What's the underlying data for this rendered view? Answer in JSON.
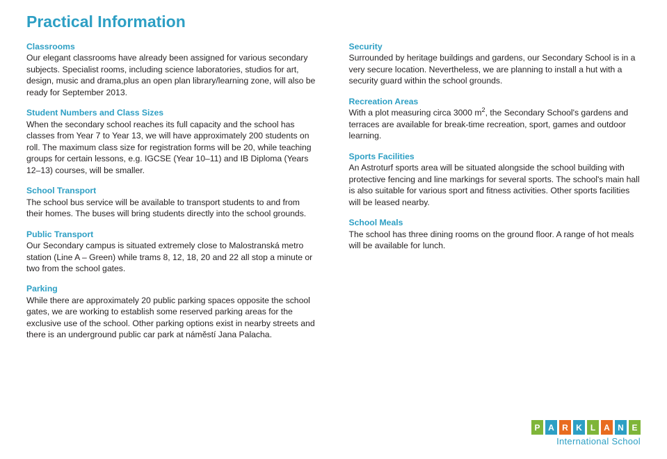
{
  "title": "Practical Information",
  "left": [
    {
      "heading": "Classrooms",
      "body": "Our elegant classrooms have already been assigned for various secondary subjects. Specialist rooms, including science laboratories, studios for art, design, music and drama,plus an open plan library/learning zone, will also be ready for September 2013."
    },
    {
      "heading": "Student Numbers and Class Sizes",
      "body": "When the secondary school reaches its full capacity and the school has classes from Year 7 to Year 13, we will have approximately 200 students on roll. The maximum class size for registration forms will be 20, while teaching groups for certain lessons, e.g. IGCSE (Year 10–11) and IB Diploma (Years 12–13) courses, will be smaller."
    },
    {
      "heading": "School Transport",
      "body": "The school bus service will be available to transport students to and from their homes. The buses will bring students directly into the school grounds."
    },
    {
      "heading": "Public Transport",
      "body": "Our Secondary campus is situated extremely close to Malostranská metro station (Line A – Green) while trams 8, 12, 18, 20 and 22 all stop a minute or two from the school gates."
    },
    {
      "heading": "Parking",
      "body": "While there are approximately 20 public parking spaces opposite the school gates, we are working to establish some reserved parking areas for the exclusive use of the school. Other parking options exist in nearby streets and there is an underground public car park at náměstí Jana Palacha."
    }
  ],
  "right": [
    {
      "heading": "Security",
      "body": "Surrounded by heritage buildings and gardens, our Secondary School is in a very secure location. Nevertheless, we are planning to install a hut with a security guard within the school grounds."
    },
    {
      "heading": "Recreation Areas",
      "body": "With a plot measuring circa 3000 m², the Secondary School's gardens and terraces are available for break-time recreation, sport, games and outdoor learning."
    },
    {
      "heading": "Sports Facilities",
      "body": "An Astroturf sports area will be situated alongside the school building with protective fencing and line markings for several sports. The school's main hall is also suitable for various sport and fitness activities. Other sports facilities will be leased nearby."
    },
    {
      "heading": "School Meals",
      "body": "The school has three dining rooms on the ground floor. A range of hot meals will be available for lunch."
    }
  ],
  "logo": {
    "letters": [
      "P",
      "A",
      "R",
      "K",
      "L",
      "A",
      "N",
      "E"
    ],
    "colors": [
      "#7fb539",
      "#2d9fc4",
      "#e86b1f",
      "#2d9fc4",
      "#7fb539",
      "#e86b1f",
      "#2d9fc4",
      "#7fb539"
    ],
    "sub": "International School"
  }
}
